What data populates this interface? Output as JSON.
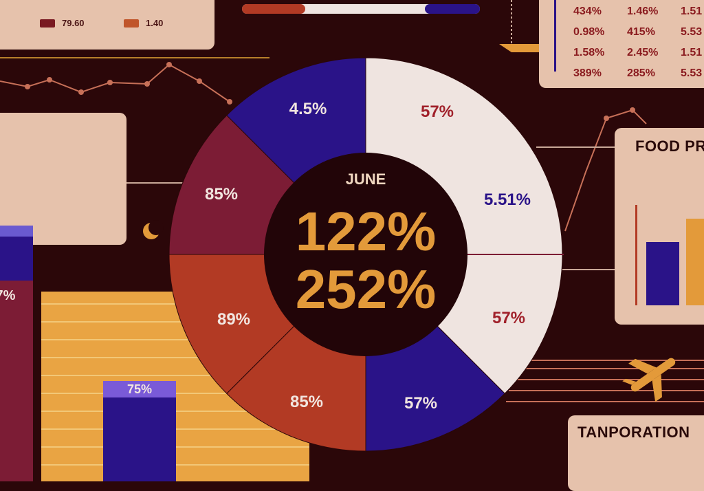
{
  "legend": {
    "items": [
      {
        "label": "79.60",
        "color": "#7a1a22"
      },
      {
        "label": "1.40",
        "color": "#c0552a"
      }
    ]
  },
  "stats": {
    "rows": [
      [
        "434%",
        "1.46%",
        "1.51"
      ],
      [
        "0.98%",
        "415%",
        "5.53"
      ],
      [
        "1.58%",
        "2.45%",
        "1.51"
      ],
      [
        "389%",
        "285%",
        "5.53"
      ]
    ]
  },
  "food_card": {
    "title": "FOOD PR"
  },
  "transport_card": {
    "title": "TANPORATION"
  },
  "colors": {
    "background": "#2b0709",
    "navy": "#2a1388",
    "maroon": "#7c1c35",
    "rust": "#b23a24",
    "cream": "#efe4e0",
    "gold": "#e39a3a",
    "center": "#220508"
  },
  "icons": {
    "moon": "crescent-moon-icon",
    "plane": "airplane-icon"
  },
  "chart_data": {
    "type": "pie",
    "title": "",
    "center_label": "JUNE",
    "center_values": [
      "122%",
      "252%"
    ],
    "slices": [
      {
        "label": "57%",
        "share": 0.25,
        "color": "#efe4e0",
        "text_color": "#a0202a"
      },
      {
        "label": "5.51%",
        "share": 0.0,
        "color": "#efe4e0",
        "text_color": "#2a1388"
      },
      {
        "label": "57%",
        "share": 0.125,
        "color": "#efe4e0",
        "text_color": "#a0202a"
      },
      {
        "label": "57%",
        "share": 0.125,
        "color": "#2a1388",
        "text_color": "#f2e6e0"
      },
      {
        "label": "85%",
        "share": 0.125,
        "color": "#b23a24",
        "text_color": "#f2e6e0"
      },
      {
        "label": "89%",
        "share": 0.125,
        "color": "#b23a24",
        "text_color": "#f2e6e0"
      },
      {
        "label": "85%",
        "share": 0.125,
        "color": "#7c1c35",
        "text_color": "#f2e6e0"
      },
      {
        "label": "4.5%",
        "share": 0.125,
        "color": "#2a1388",
        "text_color": "#f2e6e0"
      }
    ],
    "bars": [
      {
        "label": "7%",
        "value": 7
      },
      {
        "label": "75%",
        "value": 75
      }
    ]
  }
}
